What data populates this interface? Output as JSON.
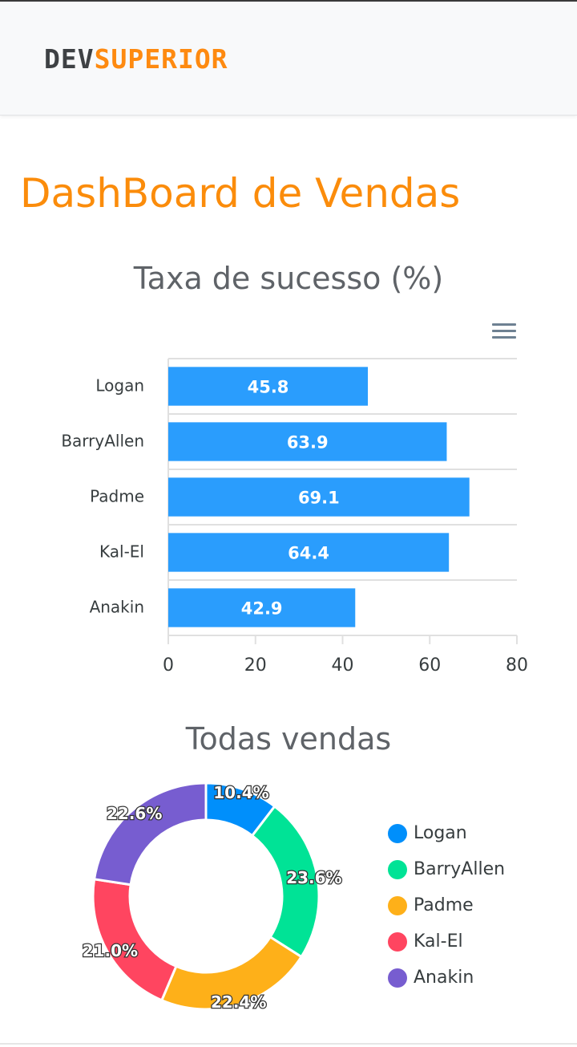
{
  "navbar": {
    "logo_dev": "DEV",
    "logo_superior": "SUPERIOR"
  },
  "page": {
    "title": "DashBoard de Vendas"
  },
  "colors": {
    "accent": "#fb8c0b",
    "bar": "#2a9dfd",
    "logo_dark": "#3e4144",
    "logo_orange": "#fe8a10"
  },
  "toolbar": {
    "menu_icon": "hamburger-menu-icon"
  },
  "chart_data": [
    {
      "type": "bar",
      "orientation": "horizontal",
      "title": "Taxa de sucesso (%)",
      "categories": [
        "Logan",
        "BarryAllen",
        "Padme",
        "Kal-El",
        "Anakin"
      ],
      "values": [
        45.8,
        63.9,
        69.1,
        64.4,
        42.9
      ],
      "data_labels": [
        "45.8",
        "63.9",
        "69.1",
        "64.4",
        "42.9"
      ],
      "xlim": [
        0,
        80
      ],
      "xticks": [
        "0",
        "20",
        "40",
        "60",
        "80"
      ],
      "color": "#2a9dfd",
      "grid": true
    },
    {
      "type": "pie",
      "variant": "donut",
      "title": "Todas vendas",
      "labels": [
        "Logan",
        "BarryAllen",
        "Padme",
        "Kal-El",
        "Anakin"
      ],
      "values": [
        10.4,
        23.6,
        22.4,
        21.0,
        22.6
      ],
      "data_labels": [
        "10.4%",
        "23.6%",
        "22.4%",
        "21.0%",
        "22.6%"
      ],
      "colors": [
        "#008ffb",
        "#00e396",
        "#feb019",
        "#ff4560",
        "#775dd0"
      ],
      "legend_position": "right"
    }
  ]
}
